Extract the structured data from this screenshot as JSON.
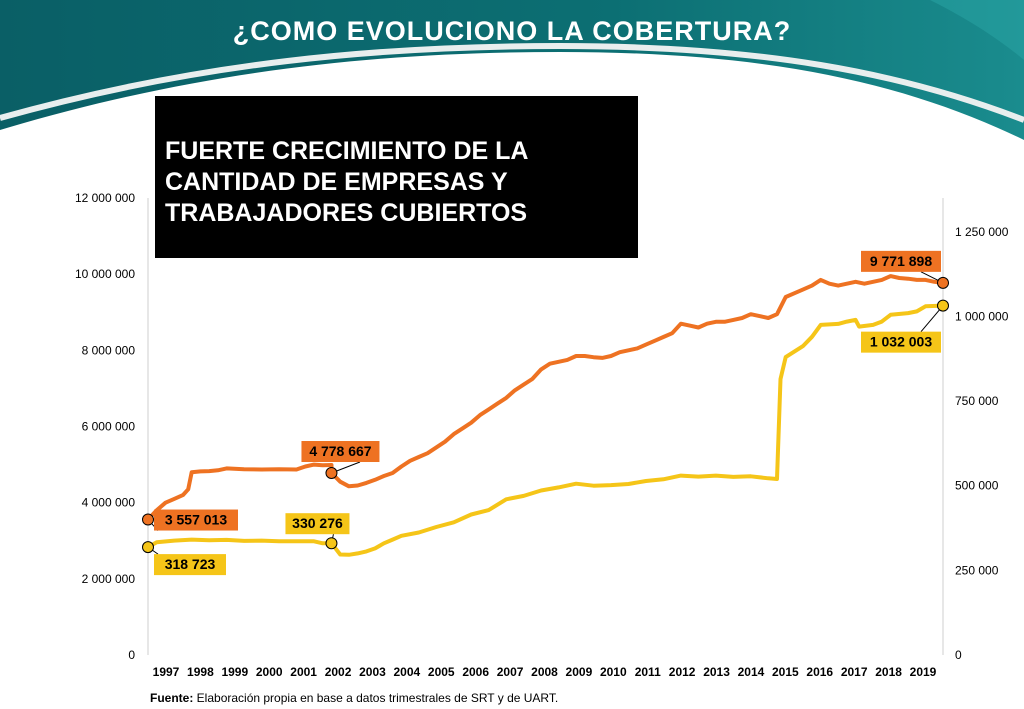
{
  "slide": {
    "title": "¿COMO EVOLUCIONO LA COBERTURA?",
    "headline": "FUERTE CRECIMIENTO DE LA\nCANTIDAD DE EMPRESAS Y\nTRABAJADORES CUBIERTOS",
    "footnote_label": "Fuente:",
    "footnote_text": " Elaboración propia en base a datos trimestrales de SRT y de UART."
  },
  "colors": {
    "banner_dark": "#0b6a6f",
    "banner_light": "#2aa6a6",
    "headline_bg": "#000000",
    "workers_line": "#ee7222",
    "firms_line": "#f5c518"
  },
  "chart_data": {
    "type": "line",
    "x_label_ticks": [
      "1997",
      "1998",
      "1999",
      "2000",
      "2001",
      "2002",
      "2003",
      "2004",
      "2005",
      "2006",
      "2007",
      "2008",
      "2009",
      "2010",
      "2011",
      "2012",
      "2013",
      "2014",
      "2015",
      "2016",
      "2017",
      "2018",
      "2019"
    ],
    "y_left": {
      "ticks": [
        "0",
        "2 000 000",
        "4 000 000",
        "6 000 000",
        "8 000 000",
        "10 000 000",
        "12 000 000"
      ],
      "range": [
        0,
        12000000
      ]
    },
    "y_right": {
      "ticks": [
        "0",
        "250 000",
        "500 000",
        "750 000",
        "1 000 000",
        "1 250 000"
      ],
      "range": [
        0,
        1350000
      ]
    },
    "grid": false,
    "series": [
      {
        "axis": "left",
        "points": [
          [
            1996.75,
            3557013
          ],
          [
            1997.0,
            3800000
          ],
          [
            1997.25,
            4000000
          ],
          [
            1997.5,
            4100000
          ],
          [
            1997.75,
            4200000
          ],
          [
            1997.9,
            4350000
          ],
          [
            1998.0,
            4800000
          ],
          [
            1998.25,
            4820000
          ],
          [
            1998.5,
            4830000
          ],
          [
            1998.75,
            4850000
          ],
          [
            1999.0,
            4900000
          ],
          [
            1999.5,
            4880000
          ],
          [
            2000.0,
            4870000
          ],
          [
            2000.5,
            4880000
          ],
          [
            2001.0,
            4870000
          ],
          [
            2001.25,
            4950000
          ],
          [
            2001.5,
            5000000
          ],
          [
            2001.75,
            4980000
          ],
          [
            2002.0,
            4990000
          ],
          [
            2002.0,
            4778667
          ],
          [
            2002.25,
            4550000
          ],
          [
            2002.5,
            4430000
          ],
          [
            2002.75,
            4450000
          ],
          [
            2003.0,
            4520000
          ],
          [
            2003.25,
            4600000
          ],
          [
            2003.5,
            4700000
          ],
          [
            2003.75,
            4780000
          ],
          [
            2004.0,
            4950000
          ],
          [
            2004.25,
            5100000
          ],
          [
            2004.5,
            5200000
          ],
          [
            2004.75,
            5300000
          ],
          [
            2005.0,
            5450000
          ],
          [
            2005.25,
            5600000
          ],
          [
            2005.5,
            5800000
          ],
          [
            2005.75,
            5950000
          ],
          [
            2006.0,
            6100000
          ],
          [
            2006.25,
            6300000
          ],
          [
            2006.5,
            6450000
          ],
          [
            2006.75,
            6600000
          ],
          [
            2007.0,
            6750000
          ],
          [
            2007.25,
            6950000
          ],
          [
            2007.5,
            7100000
          ],
          [
            2007.75,
            7250000
          ],
          [
            2008.0,
            7500000
          ],
          [
            2008.25,
            7650000
          ],
          [
            2008.5,
            7700000
          ],
          [
            2008.75,
            7750000
          ],
          [
            2009.0,
            7850000
          ],
          [
            2009.25,
            7850000
          ],
          [
            2009.5,
            7820000
          ],
          [
            2009.75,
            7800000
          ],
          [
            2010.0,
            7850000
          ],
          [
            2010.25,
            7950000
          ],
          [
            2010.5,
            8000000
          ],
          [
            2010.75,
            8050000
          ],
          [
            2011.0,
            8150000
          ],
          [
            2011.25,
            8250000
          ],
          [
            2011.5,
            8350000
          ],
          [
            2011.75,
            8450000
          ],
          [
            2012.0,
            8700000
          ],
          [
            2012.25,
            8650000
          ],
          [
            2012.5,
            8600000
          ],
          [
            2012.75,
            8700000
          ],
          [
            2013.0,
            8750000
          ],
          [
            2013.25,
            8750000
          ],
          [
            2013.5,
            8800000
          ],
          [
            2013.75,
            8850000
          ],
          [
            2014.0,
            8950000
          ],
          [
            2014.25,
            8900000
          ],
          [
            2014.5,
            8850000
          ],
          [
            2014.75,
            8950000
          ],
          [
            2015.0,
            9400000
          ],
          [
            2015.25,
            9500000
          ],
          [
            2015.5,
            9600000
          ],
          [
            2015.75,
            9700000
          ],
          [
            2016.0,
            9850000
          ],
          [
            2016.25,
            9750000
          ],
          [
            2016.5,
            9700000
          ],
          [
            2016.75,
            9750000
          ],
          [
            2017.0,
            9800000
          ],
          [
            2017.25,
            9750000
          ],
          [
            2017.5,
            9800000
          ],
          [
            2017.75,
            9850000
          ],
          [
            2018.0,
            9950000
          ],
          [
            2018.25,
            9900000
          ],
          [
            2018.5,
            9880000
          ],
          [
            2018.75,
            9850000
          ],
          [
            2019.0,
            9850000
          ],
          [
            2019.25,
            9800000
          ],
          [
            2019.5,
            9771898
          ]
        ]
      },
      {
        "axis": "right",
        "points": [
          [
            1996.75,
            318723
          ],
          [
            1997.0,
            333000
          ],
          [
            1997.5,
            338000
          ],
          [
            1998.0,
            341000
          ],
          [
            1998.5,
            339000
          ],
          [
            1999.0,
            340000
          ],
          [
            1999.5,
            337000
          ],
          [
            2000.0,
            338000
          ],
          [
            2000.5,
            336000
          ],
          [
            2001.0,
            336000
          ],
          [
            2001.5,
            336000
          ],
          [
            2001.75,
            330000
          ],
          [
            2002.0,
            330276
          ],
          [
            2002.25,
            297000
          ],
          [
            2002.5,
            296000
          ],
          [
            2002.75,
            300000
          ],
          [
            2003.0,
            306000
          ],
          [
            2003.25,
            315000
          ],
          [
            2003.5,
            330000
          ],
          [
            2003.75,
            341000
          ],
          [
            2004.0,
            352000
          ],
          [
            2004.5,
            362000
          ],
          [
            2005.0,
            378000
          ],
          [
            2005.5,
            392000
          ],
          [
            2006.0,
            415000
          ],
          [
            2006.5,
            428000
          ],
          [
            2007.0,
            460000
          ],
          [
            2007.5,
            470000
          ],
          [
            2008.0,
            486000
          ],
          [
            2008.5,
            495000
          ],
          [
            2009.0,
            506000
          ],
          [
            2009.5,
            500000
          ],
          [
            2010.0,
            502000
          ],
          [
            2010.5,
            505000
          ],
          [
            2011.0,
            514000
          ],
          [
            2011.5,
            519000
          ],
          [
            2012.0,
            530000
          ],
          [
            2012.5,
            527000
          ],
          [
            2013.0,
            530000
          ],
          [
            2013.5,
            526000
          ],
          [
            2014.0,
            528000
          ],
          [
            2014.5,
            522000
          ],
          [
            2014.75,
            520000
          ],
          [
            2014.85,
            815000
          ],
          [
            2015.0,
            880000
          ],
          [
            2015.5,
            913000
          ],
          [
            2015.75,
            940000
          ],
          [
            2016.0,
            975000
          ],
          [
            2016.5,
            978000
          ],
          [
            2016.75,
            985000
          ],
          [
            2017.0,
            990000
          ],
          [
            2017.1,
            970000
          ],
          [
            2017.5,
            975000
          ],
          [
            2017.75,
            985000
          ],
          [
            2018.0,
            1005000
          ],
          [
            2018.5,
            1010000
          ],
          [
            2018.75,
            1015000
          ],
          [
            2019.0,
            1030000
          ],
          [
            2019.5,
            1032003
          ]
        ]
      }
    ],
    "annotations": [
      {
        "series": 0,
        "x": 1996.75,
        "value": 3557013,
        "label": "3 557 013",
        "fill": "#ee7222"
      },
      {
        "series": 0,
        "x": 2002.0,
        "value": 4778667,
        "label": "4 778 667",
        "fill": "#ee7222"
      },
      {
        "series": 0,
        "x": 2019.5,
        "value": 9771898,
        "label": "9 771 898",
        "fill": "#ee7222"
      },
      {
        "series": 1,
        "x": 1996.75,
        "value": 318723,
        "label": "318 723",
        "fill": "#f5c518"
      },
      {
        "series": 1,
        "x": 2002.0,
        "value": 330276,
        "label": "330 276",
        "fill": "#f5c518"
      },
      {
        "series": 1,
        "x": 2019.5,
        "value": 1032003,
        "label": "1 032 003",
        "fill": "#f5c518"
      }
    ]
  }
}
